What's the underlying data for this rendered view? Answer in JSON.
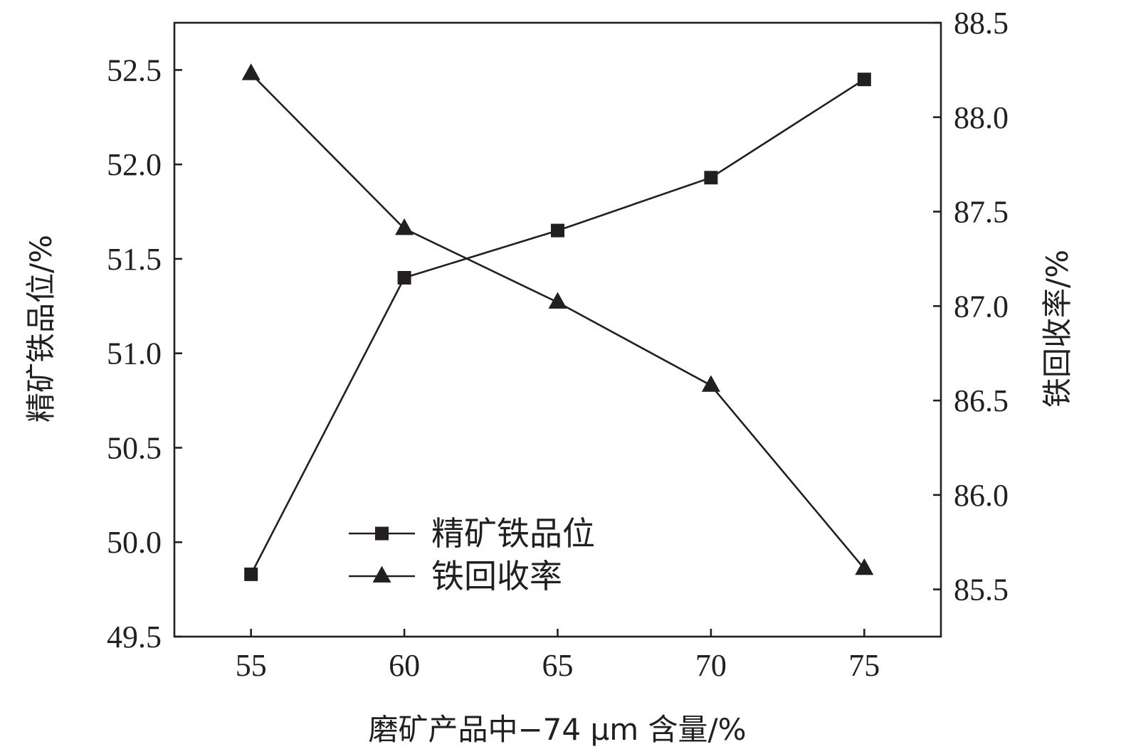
{
  "chart_data": {
    "type": "line",
    "xlabel": "磨矿产品中−74 μm 含量/%",
    "ylabel_left": "精矿铁品位/%",
    "ylabel_right": "铁回收率/%",
    "x": [
      55,
      60,
      65,
      70,
      75
    ],
    "x_ticks": [
      "55",
      "60",
      "65",
      "70",
      "75"
    ],
    "xlim": [
      52.5,
      77.5
    ],
    "ylim_left": [
      49.5,
      52.75
    ],
    "yticks_left": [
      "49.5",
      "50.0",
      "50.5",
      "51.0",
      "51.5",
      "52.0",
      "52.5"
    ],
    "ylim_right": [
      85.25,
      88.5
    ],
    "yticks_right": [
      "85.5",
      "86.0",
      "86.5",
      "87.0",
      "87.5",
      "88.0",
      "88.5"
    ],
    "legend_position": "center-left",
    "grid": false,
    "series": [
      {
        "name": "精矿铁品位",
        "axis": "left",
        "marker": "square",
        "values": [
          49.83,
          51.4,
          51.65,
          51.93,
          52.45
        ]
      },
      {
        "name": "铁回收率",
        "axis": "right",
        "marker": "triangle",
        "values": [
          88.23,
          87.41,
          87.02,
          86.58,
          85.61
        ]
      }
    ],
    "colors": {
      "ink": "#231f20",
      "background": "#ffffff"
    }
  }
}
